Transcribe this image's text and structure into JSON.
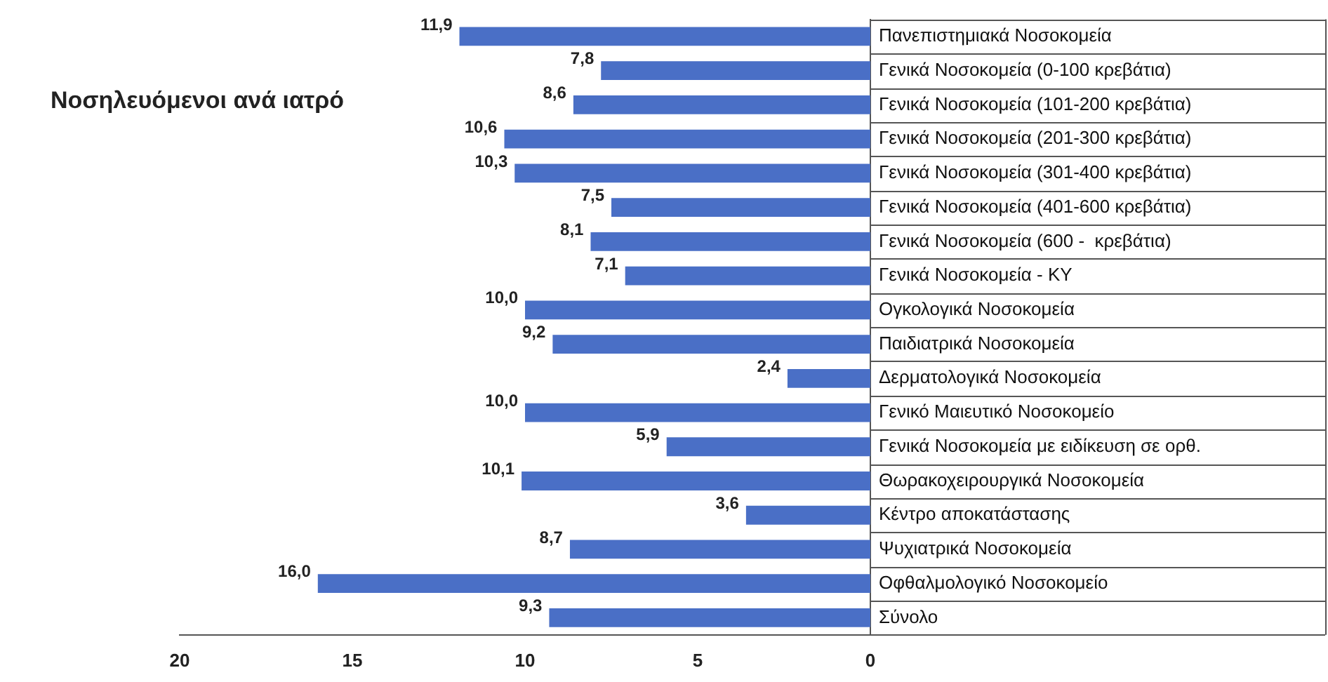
{
  "chart_data": {
    "type": "bar",
    "orientation": "horizontal",
    "title": "Νοσηλευόμενοι ανά ιατρό",
    "categories": [
      "Πανεπιστημιακά Νοσοκομεία",
      "Γενικά Νοσοκομεία (0-100 κρεβάτια)",
      "Γενικά Νοσοκομεία (101-200 κρεβάτια)",
      "Γενικά Νοσοκομεία (201-300 κρεβάτια)",
      "Γενικά Νοσοκομεία (301-400 κρεβάτια)",
      "Γενικά Νοσοκομεία (401-600 κρεβάτια)",
      "Γενικά Νοσοκομεία (600 -  κρεβάτια)",
      "Γενικά Νοσοκομεία - ΚΥ",
      "Ογκολογικά Νοσοκομεία",
      "Παιδιατρικά Νοσοκομεία",
      "Δερματολογικά Νοσοκομεία",
      "Γενικό Μαιευτικό Νοσοκομείο",
      "Γενικά Νοσοκομεία με ειδίκευση σε ορθ.",
      "Θωρακοχειρουργικά Νοσοκομεία",
      "Κέντρο αποκατάστασης",
      "Ψυχιατρικά Νοσοκομεία",
      "Οφθαλμολογικό Νοσοκομείο",
      "Σύνολο"
    ],
    "values": [
      11.9,
      7.8,
      8.6,
      10.6,
      10.3,
      7.5,
      8.1,
      7.1,
      10.0,
      9.2,
      2.4,
      10.0,
      5.9,
      10.1,
      3.6,
      8.7,
      16.0,
      9.3
    ],
    "value_labels": [
      "11,9",
      "7,8",
      "8,6",
      "10,6",
      "10,3",
      "7,5",
      "8,1",
      "7,1",
      "10,0",
      "9,2",
      "2,4",
      "10,0",
      "5,9",
      "10,1",
      "3,6",
      "8,7",
      "16,0",
      "9,3"
    ],
    "color": "#4a6fc6",
    "xlim": [
      20,
      0
    ],
    "xticks": [
      20,
      15,
      10,
      5,
      0
    ],
    "grid": false,
    "legend": false
  }
}
